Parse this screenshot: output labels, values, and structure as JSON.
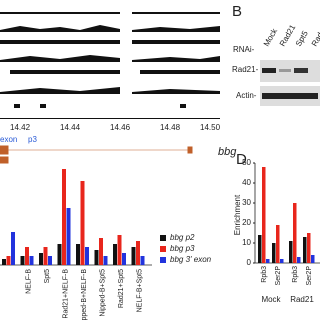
{
  "panel_a": {
    "xticks": [
      "14.42",
      "14.44",
      "14.46",
      "14.48",
      "14.50"
    ],
    "labels": [
      "exon",
      "p3"
    ],
    "gene": "bbg"
  },
  "panel_b": {
    "letter": "B",
    "rnai": "RNAi-",
    "lanes": [
      "Mock",
      "Rad21",
      "Spt5",
      "Rad"
    ],
    "rows": [
      "Rad21-",
      "Actin-"
    ]
  },
  "panel_c": {
    "categories": [
      null,
      "NELF-B",
      "Spt5",
      "Rad21+NELF-B",
      "Nipped-B+NELF-B",
      "Nipped-B+Spt5",
      "Rad21+Spt5",
      "NELF-B+Spt5"
    ],
    "series": [
      {
        "name": "bbg p2",
        "color": "#111111",
        "values": [
          0.2,
          0.3,
          0.4,
          0.7,
          0.7,
          0.5,
          0.7,
          0.6
        ]
      },
      {
        "name": "bbg p3",
        "color": "#e8261c",
        "values": [
          0.3,
          0.6,
          0.6,
          3.2,
          2.8,
          0.9,
          1.0,
          0.8
        ]
      },
      {
        "name": "bbg 3' exon",
        "color": "#2233dd",
        "values": [
          1.1,
          0.3,
          0.3,
          1.9,
          0.6,
          0.3,
          0.4,
          0.3
        ]
      }
    ]
  },
  "panel_d": {
    "letter": "D",
    "ylabel": "Enrichment",
    "ylim": [
      0,
      50
    ],
    "yticks": [
      0,
      10,
      20,
      30,
      40,
      50
    ],
    "categories": [
      "Rpb3",
      "Ser2P",
      "Rpb3",
      "Ser2P"
    ],
    "groups": [
      "Mock",
      "Rad21"
    ],
    "series": [
      {
        "name": "p2",
        "color": "#111111",
        "values": [
          14,
          10,
          11,
          13
        ]
      },
      {
        "name": "p3",
        "color": "#e8261c",
        "values": [
          48,
          19,
          30,
          15
        ]
      },
      {
        "name": "exon",
        "color": "#2233dd",
        "values": [
          2,
          2,
          3,
          4
        ]
      }
    ]
  }
}
